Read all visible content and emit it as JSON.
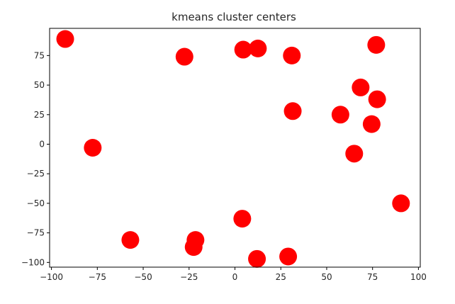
{
  "chart_data": {
    "type": "scatter",
    "title": "kmeans cluster centers",
    "xlabel": "",
    "ylabel": "",
    "xlim": [
      -101,
      101
    ],
    "ylim": [
      -104,
      98
    ],
    "xticks": [
      -100,
      -75,
      -50,
      -25,
      0,
      25,
      50,
      75,
      100
    ],
    "xtick_labels": [
      "−100",
      "−75",
      "−50",
      "−25",
      "0",
      "25",
      "50",
      "75",
      "100"
    ],
    "yticks": [
      -100,
      -75,
      -50,
      -25,
      0,
      25,
      50,
      75
    ],
    "ytick_labels": [
      "−100",
      "−75",
      "−50",
      "−25",
      "0",
      "25",
      "50",
      "75"
    ],
    "grid": false,
    "marker_color": "#ff0000",
    "points": [
      {
        "x": -92.5,
        "y": 89
      },
      {
        "x": -27.5,
        "y": 74
      },
      {
        "x": 4.5,
        "y": 80
      },
      {
        "x": 12.5,
        "y": 81
      },
      {
        "x": 31,
        "y": 75
      },
      {
        "x": 77,
        "y": 84
      },
      {
        "x": 68.5,
        "y": 48
      },
      {
        "x": 77.5,
        "y": 38
      },
      {
        "x": 31.5,
        "y": 28
      },
      {
        "x": 57.5,
        "y": 25
      },
      {
        "x": 74.5,
        "y": 17
      },
      {
        "x": -77.5,
        "y": -3
      },
      {
        "x": 65,
        "y": -8
      },
      {
        "x": 90.5,
        "y": -50
      },
      {
        "x": 4,
        "y": -63
      },
      {
        "x": -57,
        "y": -81
      },
      {
        "x": -21.5,
        "y": -81
      },
      {
        "x": -22.5,
        "y": -87
      },
      {
        "x": 12,
        "y": -97
      },
      {
        "x": 29,
        "y": -95
      }
    ]
  }
}
